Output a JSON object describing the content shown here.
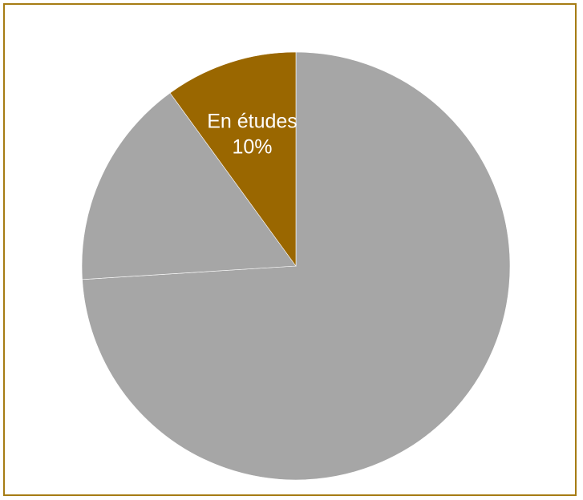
{
  "chart_data": {
    "type": "pie",
    "slices": [
      {
        "label": "",
        "value": 74,
        "color": "#a6a6a6",
        "show_label": false
      },
      {
        "label": "",
        "value": 16,
        "color": "#a6a6a6",
        "show_label": false
      },
      {
        "label": "En études",
        "value": 10,
        "color": "#9a6700",
        "show_label": true,
        "value_text": "10%"
      }
    ],
    "start": "top",
    "direction": "clockwise",
    "slice_separator_color": "#ffffff",
    "legend": "none",
    "frame_color": "#a67c14"
  }
}
